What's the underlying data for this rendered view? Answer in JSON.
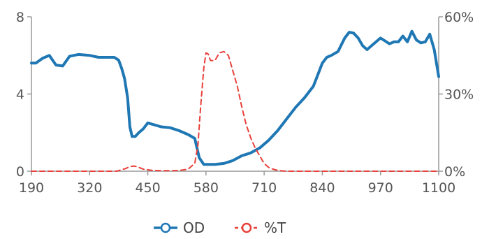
{
  "chart_data": {
    "type": "line",
    "xlim": [
      190,
      1100
    ],
    "x_ticks": [
      190,
      320,
      450,
      580,
      710,
      840,
      970,
      1100
    ],
    "y_left": {
      "lim": [
        0,
        8
      ],
      "ticks": [
        "0",
        "4",
        "8"
      ],
      "values": [
        0,
        4,
        8
      ]
    },
    "y_right": {
      "lim": [
        0,
        60
      ],
      "ticks": [
        "0%",
        "30%",
        "60%"
      ],
      "values": [
        0,
        30,
        60
      ]
    },
    "grid": false,
    "legend_position": "bottom",
    "series": [
      {
        "name": "OD",
        "axis": "left",
        "color": "#1f77b4",
        "style": "solid",
        "x": [
          190,
          200,
          215,
          230,
          245,
          260,
          275,
          295,
          320,
          340,
          360,
          375,
          385,
          392,
          398,
          405,
          410,
          415,
          422,
          430,
          440,
          450,
          465,
          480,
          500,
          520,
          540,
          555,
          565,
          575,
          585,
          600,
          620,
          640,
          660,
          680,
          700,
          720,
          740,
          760,
          780,
          800,
          820,
          830,
          840,
          850,
          860,
          875,
          890,
          900,
          910,
          920,
          930,
          940,
          950,
          960,
          970,
          980,
          990,
          1000,
          1010,
          1020,
          1030,
          1040,
          1050,
          1060,
          1070,
          1080,
          1090,
          1100
        ],
        "y": [
          5.6,
          5.6,
          5.85,
          6.0,
          5.5,
          5.45,
          5.95,
          6.05,
          6.0,
          5.9,
          5.9,
          5.9,
          5.75,
          5.3,
          4.8,
          3.8,
          2.3,
          1.8,
          1.8,
          2.0,
          2.2,
          2.5,
          2.4,
          2.3,
          2.25,
          2.1,
          1.9,
          1.7,
          0.7,
          0.35,
          0.35,
          0.35,
          0.4,
          0.55,
          0.8,
          0.95,
          1.2,
          1.6,
          2.1,
          2.7,
          3.3,
          3.8,
          4.4,
          5.0,
          5.6,
          5.9,
          6.0,
          6.2,
          6.9,
          7.2,
          7.15,
          6.9,
          6.5,
          6.3,
          6.5,
          6.7,
          6.9,
          6.75,
          6.6,
          6.7,
          6.7,
          7.0,
          6.7,
          7.25,
          6.8,
          6.65,
          6.7,
          7.1,
          6.3,
          4.9
        ]
      },
      {
        "name": "%T",
        "axis": "right",
        "color": "#e8403a",
        "style": "dashed",
        "x": [
          190,
          300,
          380,
          400,
          410,
          420,
          430,
          440,
          460,
          480,
          500,
          520,
          540,
          555,
          562,
          568,
          575,
          580,
          585,
          590,
          600,
          610,
          620,
          630,
          640,
          650,
          660,
          670,
          680,
          690,
          700,
          710,
          720,
          730,
          740,
          760,
          800,
          900,
          1000,
          1100
        ],
        "y": [
          0,
          0,
          0,
          1,
          1.8,
          2,
          1.5,
          0.8,
          0.3,
          0.2,
          0.2,
          0.3,
          0.8,
          3,
          10,
          25,
          40,
          46,
          45.5,
          43,
          43,
          46,
          46.5,
          45,
          39,
          33,
          25,
          18,
          13,
          9,
          6,
          3,
          1.5,
          0.8,
          0.3,
          0,
          0,
          0,
          0,
          0
        ]
      }
    ]
  }
}
